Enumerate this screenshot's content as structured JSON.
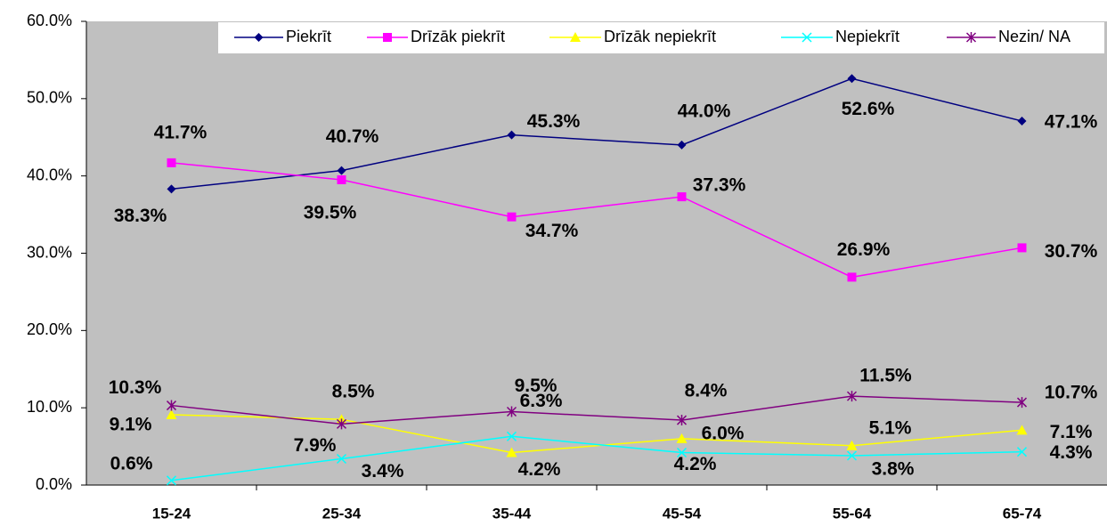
{
  "chart_data": {
    "type": "line",
    "categories": [
      "15-24",
      "25-34",
      "35-44",
      "45-54",
      "55-64",
      "65-74"
    ],
    "series": [
      {
        "name": "Piekrīt",
        "color": "#000080",
        "marker": "diamond",
        "values": [
          38.3,
          40.7,
          45.3,
          44.0,
          52.6,
          47.1
        ],
        "value_labels": [
          "38.3%",
          "40.7%",
          "45.3%",
          "44.0%",
          "52.6%",
          "47.1%"
        ]
      },
      {
        "name": "Drīzāk piekrīt",
        "color": "#ff00ff",
        "marker": "square",
        "values": [
          41.7,
          39.5,
          34.7,
          37.3,
          26.9,
          30.7
        ],
        "value_labels": [
          "41.7%",
          "39.5%",
          "34.7%",
          "37.3%",
          "26.9%",
          "30.7%"
        ]
      },
      {
        "name": "Drīzāk nepiekrīt",
        "color": "#ffff00",
        "marker": "triangle",
        "values": [
          9.1,
          8.5,
          4.2,
          6.0,
          5.1,
          7.1
        ],
        "value_labels": [
          "9.1%",
          "8.5%",
          "4.2%",
          "6.0%",
          "5.1%",
          "7.1%"
        ]
      },
      {
        "name": "Nepiekrīt",
        "color": "#00ffff",
        "marker": "x",
        "values": [
          0.6,
          3.4,
          6.3,
          4.2,
          3.8,
          4.3
        ],
        "value_labels": [
          "0.6%",
          "3.4%",
          "6.3%",
          "4.2%",
          "3.8%",
          "4.3%"
        ]
      },
      {
        "name": "Nezin/ NA",
        "color": "#800080",
        "marker": "star",
        "values": [
          10.3,
          7.9,
          9.5,
          8.4,
          11.5,
          10.7
        ],
        "value_labels": [
          "10.3%",
          "7.9%",
          "9.5%",
          "8.4%",
          "11.5%",
          "10.7%"
        ]
      }
    ],
    "ylim": [
      0,
      60
    ],
    "yticks": [
      {
        "value": 0,
        "label": "0.0%"
      },
      {
        "value": 10,
        "label": "10.0%"
      },
      {
        "value": 20,
        "label": "20.0%"
      },
      {
        "value": 30,
        "label": "30.0%"
      },
      {
        "value": 40,
        "label": "40.0%"
      },
      {
        "value": 50,
        "label": "50.0%"
      },
      {
        "value": 60,
        "label": "60.0%"
      }
    ],
    "legend": "top"
  }
}
